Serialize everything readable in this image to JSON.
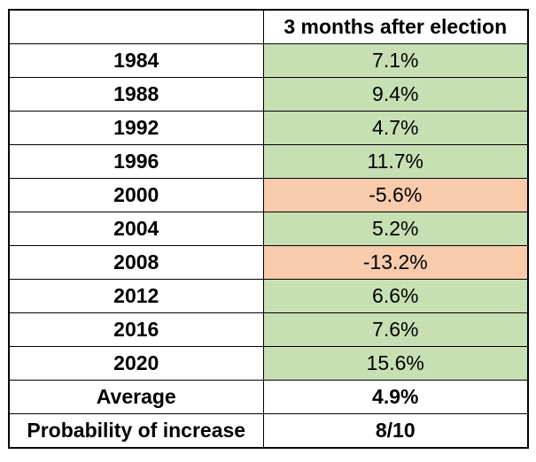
{
  "chart_data": {
    "type": "table",
    "columns": [
      "",
      "3 months after election"
    ],
    "rows": [
      {
        "label": "1984",
        "value": "7.1%",
        "numeric": 7.1
      },
      {
        "label": "1988",
        "value": "9.4%",
        "numeric": 9.4
      },
      {
        "label": "1992",
        "value": "4.7%",
        "numeric": 4.7
      },
      {
        "label": "1996",
        "value": "11.7%",
        "numeric": 11.7
      },
      {
        "label": "2000",
        "value": "-5.6%",
        "numeric": -5.6
      },
      {
        "label": "2004",
        "value": "5.2%",
        "numeric": 5.2
      },
      {
        "label": "2008",
        "value": "-13.2%",
        "numeric": -13.2
      },
      {
        "label": "2012",
        "value": "6.6%",
        "numeric": 6.6
      },
      {
        "label": "2016",
        "value": "7.6%",
        "numeric": 7.6
      },
      {
        "label": "2020",
        "value": "15.6%",
        "numeric": 15.6
      }
    ],
    "summary": [
      {
        "label": "Average",
        "value": "4.9%"
      },
      {
        "label": "Probability of increase",
        "value": "8/10"
      }
    ],
    "colors": {
      "positive": "#c6e0b4",
      "negative": "#f8cbad",
      "border": "#000000"
    }
  }
}
